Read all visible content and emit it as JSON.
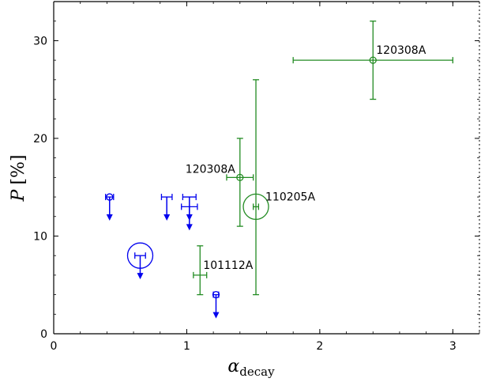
{
  "chart_data": {
    "type": "scatter",
    "title": "",
    "xlabel": "α",
    "xlabel_sub": "decay",
    "ylabel": "P",
    "ylabel_unit": "[%]",
    "xlim": [
      0,
      3.2
    ],
    "ylim": [
      0,
      34
    ],
    "xticks": [
      0,
      1,
      2,
      3
    ],
    "xtick_labels": [
      "0",
      "1",
      "2",
      "3"
    ],
    "yticks": [
      0,
      10,
      20,
      30
    ],
    "ytick_labels": [
      "0",
      "10",
      "20",
      "30"
    ],
    "grid": false,
    "legend": "none",
    "colors": {
      "detection": "#228B22",
      "upper_limit": "#0000EE",
      "axis": "#000000"
    },
    "series": [
      {
        "kind": "detection",
        "points": [
          {
            "x": 2.4,
            "y": 28,
            "xerr": [
              0.6,
              0.6
            ],
            "yerr": [
              4,
              4
            ],
            "marker": "small-circle",
            "label": "120308A",
            "label_side": "right"
          },
          {
            "x": 1.4,
            "y": 16,
            "xerr": [
              0.1,
              0.1
            ],
            "yerr": [
              5,
              4
            ],
            "marker": "small-circle",
            "label": "120308A",
            "label_side": "left"
          },
          {
            "x": 1.52,
            "y": 13,
            "xerr": [
              0.02,
              0.02
            ],
            "yerr": [
              9,
              13
            ],
            "marker": "large-circle",
            "label": "110205A",
            "label_side": "right"
          },
          {
            "x": 1.1,
            "y": 6,
            "xerr": [
              0.05,
              0.05
            ],
            "yerr": [
              2,
              3
            ],
            "marker": "none",
            "label": "101112A",
            "label_side": "right"
          }
        ]
      },
      {
        "kind": "upper_limit",
        "points": [
          {
            "x": 0.42,
            "y": 14,
            "xerr": [
              0.03,
              0.03
            ],
            "marker": "small-circle"
          },
          {
            "x": 0.65,
            "y": 8,
            "xerr": [
              0.04,
              0.04
            ],
            "marker": "large-circle"
          },
          {
            "x": 0.85,
            "y": 14,
            "xerr": [
              0.04,
              0.04
            ],
            "marker": "none"
          },
          {
            "x": 1.02,
            "y": 14,
            "xerr": [
              0.05,
              0.05
            ],
            "marker": "none"
          },
          {
            "x": 1.02,
            "y": 13,
            "xerr": [
              0.06,
              0.06
            ],
            "marker": "none"
          },
          {
            "x": 1.22,
            "y": 4,
            "xerr": [
              0.02,
              0.02
            ],
            "marker": "small-circle"
          }
        ]
      }
    ]
  }
}
